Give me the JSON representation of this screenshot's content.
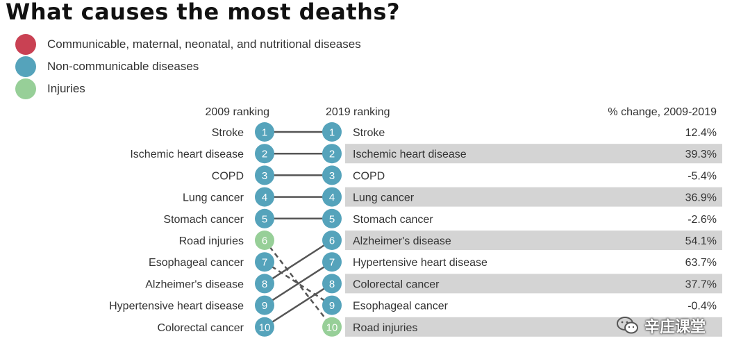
{
  "chart_data": {
    "type": "table",
    "title": "What causes the most deaths?",
    "legend": [
      {
        "label": "Communicable, maternal, neonatal, and nutritional diseases",
        "color": "#c94153"
      },
      {
        "label": "Non-communicable diseases",
        "color": "#55a3bb"
      },
      {
        "label": "Injuries",
        "color": "#97cf98"
      }
    ],
    "headers": {
      "left": "2009 ranking",
      "middle": "2019 ranking",
      "right": "% change, 2009-2019"
    },
    "ranking_2009": [
      {
        "rank": "1",
        "cause": "Stroke",
        "category": "ncd"
      },
      {
        "rank": "2",
        "cause": "Ischemic heart disease",
        "category": "ncd"
      },
      {
        "rank": "3",
        "cause": "COPD",
        "category": "ncd"
      },
      {
        "rank": "4",
        "cause": "Lung cancer",
        "category": "ncd"
      },
      {
        "rank": "5",
        "cause": "Stomach cancer",
        "category": "ncd"
      },
      {
        "rank": "6",
        "cause": "Road injuries",
        "category": "injury"
      },
      {
        "rank": "7",
        "cause": "Esophageal cancer",
        "category": "ncd"
      },
      {
        "rank": "8",
        "cause": "Alzheimer's disease",
        "category": "ncd"
      },
      {
        "rank": "9",
        "cause": "Hypertensive heart disease",
        "category": "ncd"
      },
      {
        "rank": "10",
        "cause": "Colorectal cancer",
        "category": "ncd"
      }
    ],
    "ranking_2019": [
      {
        "rank": "1",
        "cause": "Stroke",
        "category": "ncd",
        "change": "12.4%",
        "change_value": 12.4,
        "highlight": false
      },
      {
        "rank": "2",
        "cause": "Ischemic heart disease",
        "category": "ncd",
        "change": "39.3%",
        "change_value": 39.3,
        "highlight": true
      },
      {
        "rank": "3",
        "cause": "COPD",
        "category": "ncd",
        "change": "-5.4%",
        "change_value": -5.4,
        "highlight": false
      },
      {
        "rank": "4",
        "cause": "Lung cancer",
        "category": "ncd",
        "change": "36.9%",
        "change_value": 36.9,
        "highlight": true
      },
      {
        "rank": "5",
        "cause": "Stomach cancer",
        "category": "ncd",
        "change": "-2.6%",
        "change_value": -2.6,
        "highlight": false
      },
      {
        "rank": "6",
        "cause": "Alzheimer's disease",
        "category": "ncd",
        "change": "54.1%",
        "change_value": 54.1,
        "highlight": true
      },
      {
        "rank": "7",
        "cause": "Hypertensive heart disease",
        "category": "ncd",
        "change": "63.7%",
        "change_value": 63.7,
        "highlight": false
      },
      {
        "rank": "8",
        "cause": "Colorectal cancer",
        "category": "ncd",
        "change": "37.7%",
        "change_value": 37.7,
        "highlight": true
      },
      {
        "rank": "9",
        "cause": "Esophageal cancer",
        "category": "ncd",
        "change": "-0.4%",
        "change_value": -0.4,
        "highlight": false
      },
      {
        "rank": "10",
        "cause": "Road injuries",
        "category": "injury",
        "change": "",
        "change_value": null,
        "highlight": true
      }
    ],
    "connections": [
      {
        "from": 1,
        "to": 1,
        "style": "solid"
      },
      {
        "from": 2,
        "to": 2,
        "style": "solid"
      },
      {
        "from": 3,
        "to": 3,
        "style": "solid"
      },
      {
        "from": 4,
        "to": 4,
        "style": "solid"
      },
      {
        "from": 5,
        "to": 5,
        "style": "solid"
      },
      {
        "from": 6,
        "to": 10,
        "style": "dashed"
      },
      {
        "from": 7,
        "to": 9,
        "style": "dashed"
      },
      {
        "from": 8,
        "to": 6,
        "style": "solid"
      },
      {
        "from": 9,
        "to": 7,
        "style": "solid"
      },
      {
        "from": 10,
        "to": 8,
        "style": "solid"
      }
    ]
  },
  "colors": {
    "ncd": "#55a3bb",
    "injury": "#97cf98",
    "communicable": "#c94153",
    "highlight": "#d4d4d4",
    "connector": "#555555"
  },
  "watermark": {
    "text": "辛庄课堂",
    "icon": "wechat-icon"
  }
}
